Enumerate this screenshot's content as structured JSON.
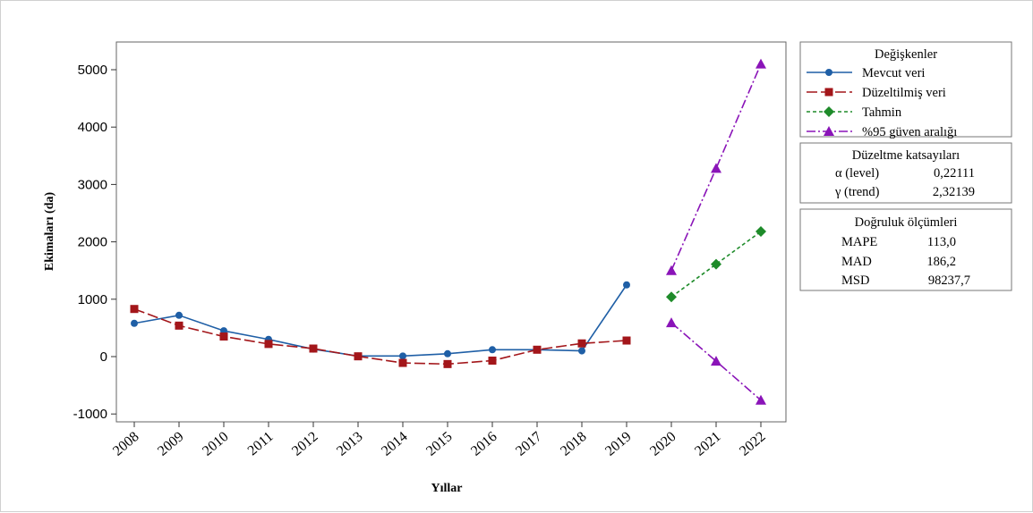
{
  "chart_data": {
    "type": "line",
    "xlabel": "Yıllar",
    "ylabel": "Ekimaları (da)",
    "ylim": [
      -1100,
      5500
    ],
    "yticks": [
      -1000,
      0,
      1000,
      2000,
      3000,
      4000,
      5000
    ],
    "categories": [
      "2008",
      "2009",
      "2010",
      "2011",
      "2012",
      "2013",
      "2014",
      "2015",
      "2016",
      "2017",
      "2018",
      "2019",
      "2020",
      "2021",
      "2022"
    ],
    "series": [
      {
        "name": "Mevcut veri",
        "color": "#1f5fa6",
        "marker": "circle",
        "dash": "solid",
        "x": [
          "2008",
          "2009",
          "2010",
          "2011",
          "2012",
          "2013",
          "2014",
          "2015",
          "2016",
          "2017",
          "2018",
          "2019"
        ],
        "values": [
          580,
          720,
          450,
          300,
          130,
          10,
          10,
          50,
          120,
          120,
          100,
          1250
        ]
      },
      {
        "name": "Düzeltilmiş veri",
        "color": "#a3161a",
        "marker": "square",
        "dash": "long-dash",
        "x": [
          "2008",
          "2009",
          "2010",
          "2011",
          "2012",
          "2013",
          "2014",
          "2015",
          "2016",
          "2017",
          "2018",
          "2019"
        ],
        "values": [
          830,
          540,
          350,
          220,
          140,
          5,
          -110,
          -130,
          -70,
          120,
          230,
          280
        ]
      },
      {
        "name": "Tahmin",
        "color": "#1e8b2a",
        "marker": "diamond",
        "dash": "short-dash",
        "x": [
          "2020",
          "2021",
          "2022"
        ],
        "values": [
          1040,
          1610,
          2180
        ]
      },
      {
        "name": "%95 güven aralığı",
        "color": "#8a14b8",
        "marker": "triangle",
        "dash": "dash-dot",
        "x": [
          "2020",
          "2021",
          "2022"
        ],
        "upper": [
          1500,
          3280,
          5100
        ],
        "lower": [
          590,
          -80,
          -760
        ]
      }
    ]
  },
  "legend": {
    "title": "Değişkenler",
    "items": [
      "Mevcut veri",
      "Düzeltilmiş veri",
      "Tahmin",
      "%95 güven aralığı"
    ]
  },
  "smoothing": {
    "title": "Düzeltme katsayıları",
    "rows": [
      {
        "label": "α (level)",
        "value": "0,22111"
      },
      {
        "label": "γ (trend)",
        "value": "2,32139"
      }
    ]
  },
  "accuracy": {
    "title": "Doğruluk ölçümleri",
    "rows": [
      {
        "label": "MAPE",
        "value": "113,0"
      },
      {
        "label": "MAD",
        "value": "186,2"
      },
      {
        "label": "MSD",
        "value": "98237,7"
      }
    ]
  }
}
